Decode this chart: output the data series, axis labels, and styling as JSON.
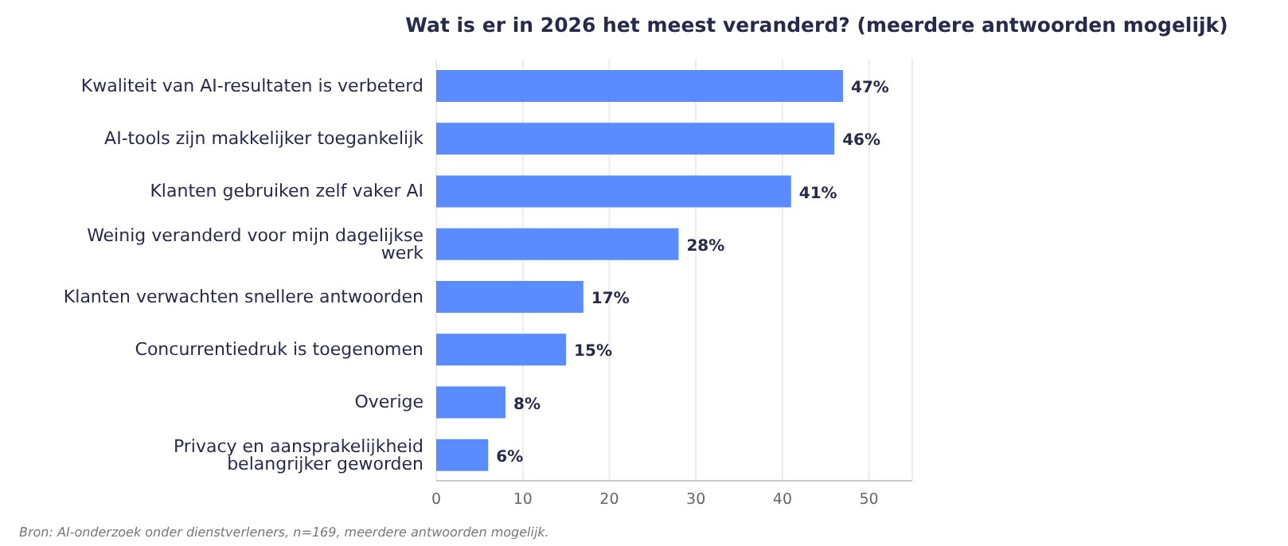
{
  "chart_data": {
    "type": "bar",
    "orientation": "horizontal",
    "title": "Wat is er in 2026 het meest veranderd? (meerdere antwoorden mogelijk)",
    "categories": [
      "Kwaliteit van AI-resultaten is verbeterd",
      "AI-tools zijn makkelijker toegankelijk",
      "Klanten gebruiken zelf vaker AI",
      "Weinig veranderd voor mijn dagelijkse werk",
      "Klanten verwachten snellere antwoorden",
      "Concurrentiedruk is toegenomen",
      "Overige",
      "Privacy en aansprakelijkheid belangrijker geworden"
    ],
    "values": [
      47,
      46,
      41,
      28,
      17,
      15,
      8,
      6
    ],
    "value_labels": [
      "47%",
      "46%",
      "41%",
      "28%",
      "17%",
      "15%",
      "8%",
      "6%"
    ],
    "color": "#5b8cff",
    "xlim": [
      0,
      55
    ],
    "xticks": [
      0,
      10,
      20,
      30,
      40,
      50
    ],
    "grid": "x",
    "annotations": [
      "Bron: AI-onderzoek onder dienstverleners, n=169, meerdere antwoorden mogelijk."
    ]
  }
}
